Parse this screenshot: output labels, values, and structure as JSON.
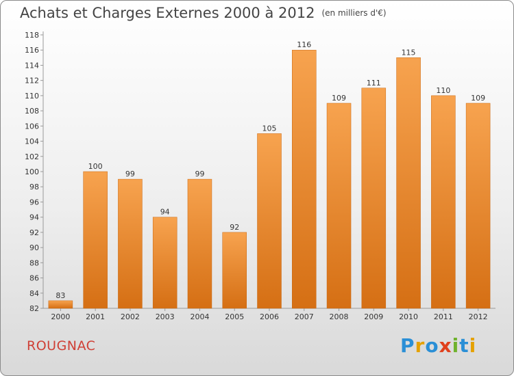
{
  "chart_data": {
    "type": "bar",
    "title": "Achats et Charges Externes 2000 à 2012",
    "unit": "(en milliers d'€)",
    "categories": [
      "2000",
      "2001",
      "2002",
      "2003",
      "2004",
      "2005",
      "2006",
      "2007",
      "2008",
      "2009",
      "2010",
      "2011",
      "2012"
    ],
    "values": [
      83,
      100,
      99,
      94,
      99,
      92,
      105,
      116,
      109,
      111,
      115,
      110,
      109
    ],
    "ylim": [
      82,
      118
    ],
    "yticks": [
      82,
      84,
      86,
      88,
      90,
      92,
      94,
      96,
      98,
      100,
      102,
      104,
      106,
      108,
      110,
      112,
      114,
      116,
      118
    ],
    "grid": false,
    "bar_color_top": "#f7a34f",
    "bar_color_bottom": "#d56f14"
  },
  "footer": {
    "place": "ROUGNAC",
    "logo": "Proxiti",
    "logo_colors": [
      "#2a8fd6",
      "#e5a100",
      "#2a8fd6",
      "#e0401c",
      "#6fb22d",
      "#2a8fd6",
      "#e5a100"
    ]
  }
}
